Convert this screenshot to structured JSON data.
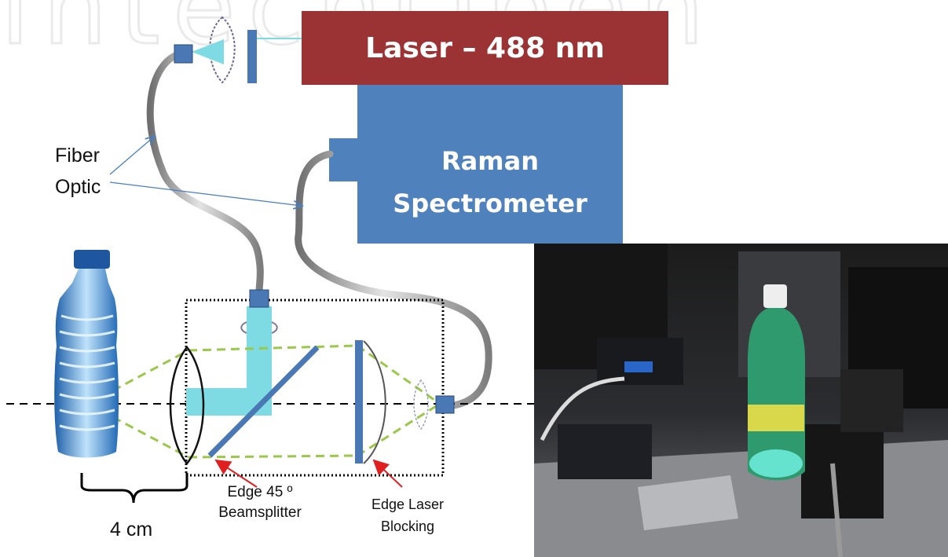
{
  "laser": {
    "label": "Laser – 488 nm",
    "color": "#9b3234"
  },
  "spectrometer": {
    "line1": "Raman",
    "line2": "Spectrometer",
    "color": "#4f81bd"
  },
  "fiber_optic": {
    "line1": "Fiber",
    "line2": "Optic"
  },
  "distance": {
    "label": "4 cm"
  },
  "beamsplitter": {
    "line1": "Edge 45 º",
    "line2": "Beamsplitter"
  },
  "blocking": {
    "line1": "Edge Laser",
    "line2": "Blocking"
  },
  "colors": {
    "beam": "#7fdbe3",
    "collection": "#9bc84a",
    "optic_blue": "#4a78b5",
    "pointer_blue": "#4a7fc0",
    "pointer_red": "#e02020"
  },
  "watermark": "IntechOpen"
}
